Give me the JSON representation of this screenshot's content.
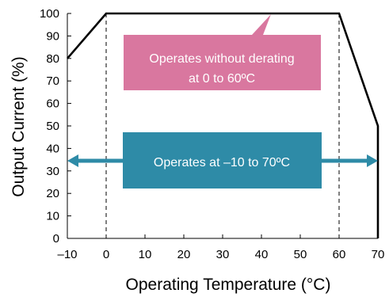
{
  "chart_data": {
    "type": "line",
    "title": "",
    "xlabel": "Operating Temperature (°C)",
    "ylabel": "Output Current (%)",
    "xlim": [
      -10,
      70
    ],
    "ylim": [
      0,
      100
    ],
    "x_ticks": [
      -10,
      0,
      10,
      20,
      30,
      40,
      50,
      60,
      70
    ],
    "x_tick_labels": [
      "–10",
      "0",
      "10",
      "20",
      "30",
      "40",
      "50",
      "60",
      "70"
    ],
    "y_ticks": [
      0,
      10,
      20,
      30,
      40,
      50,
      60,
      70,
      80,
      90,
      100
    ],
    "y_tick_labels": [
      "0",
      "10",
      "20",
      "30",
      "40",
      "50",
      "60",
      "70",
      "80",
      "90",
      "100"
    ],
    "grid": false,
    "series": [
      {
        "x": [
          -10,
          0,
          60,
          70
        ],
        "y": [
          80,
          100,
          100,
          50
        ]
      }
    ],
    "reference_lines_x": [
      0,
      60
    ],
    "annotations": {
      "no_derating": {
        "line1": "Operates without derating",
        "line2": "at 0 to 60ºC",
        "color": "#d9779f"
      },
      "operating_range": {
        "text": "Operates at –10 to 70ºC",
        "color": "#2e8ba7"
      }
    }
  }
}
